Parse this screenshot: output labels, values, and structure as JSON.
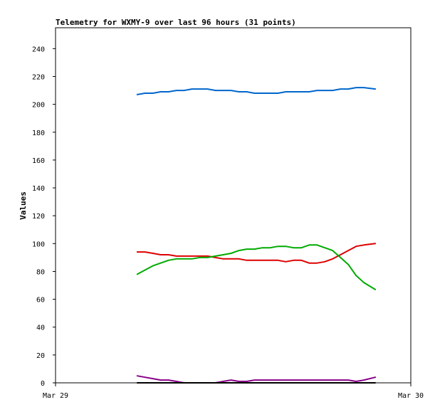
{
  "chart_data": {
    "type": "line",
    "title": "Telemetry for WXMY-9 over last 96 hours (31 points)",
    "xlabel": "",
    "ylabel": "Values",
    "x_ticks": [
      "Mar 29",
      "Mar 30"
    ],
    "ylim": [
      0,
      255
    ],
    "y_ticks": [
      0,
      20,
      40,
      60,
      80,
      100,
      120,
      140,
      160,
      180,
      200,
      220,
      240
    ],
    "grid": false,
    "legend": "none",
    "x": [
      0.23,
      0.252,
      0.274,
      0.296,
      0.318,
      0.34,
      0.362,
      0.384,
      0.406,
      0.428,
      0.45,
      0.472,
      0.494,
      0.516,
      0.538,
      0.56,
      0.582,
      0.604,
      0.626,
      0.648,
      0.67,
      0.692,
      0.714,
      0.736,
      0.758,
      0.78,
      0.802,
      0.824,
      0.846,
      0.868,
      0.9
    ],
    "series": [
      {
        "color": "#0066cc",
        "values": [
          207,
          208,
          208,
          209,
          209,
          210,
          210,
          211,
          211,
          211,
          210,
          210,
          210,
          209,
          209,
          208,
          208,
          208,
          208,
          209,
          209,
          209,
          209,
          210,
          210,
          210,
          211,
          211,
          212,
          212,
          211
        ]
      },
      {
        "color": "#dd0000",
        "values": [
          94,
          94,
          93,
          92,
          92,
          91,
          91,
          91,
          91,
          91,
          90,
          89,
          89,
          89,
          88,
          88,
          88,
          88,
          88,
          87,
          88,
          88,
          86,
          86,
          87,
          89,
          92,
          95,
          98,
          99,
          100
        ]
      },
      {
        "color": "#00aa00",
        "values": [
          78,
          81,
          84,
          86,
          88,
          89,
          89,
          89,
          90,
          90,
          91,
          92,
          93,
          95,
          96,
          96,
          97,
          97,
          98,
          98,
          97,
          97,
          99,
          99,
          97,
          95,
          90,
          85,
          77,
          72,
          67
        ]
      },
      {
        "color": "#880088",
        "values": [
          5,
          4,
          3,
          2,
          2,
          1,
          0,
          0,
          0,
          0,
          0,
          1,
          2,
          1,
          1,
          2,
          2,
          2,
          2,
          2,
          2,
          2,
          2,
          2,
          2,
          2,
          2,
          2,
          1,
          2,
          4
        ]
      },
      {
        "color": "#000000",
        "values": [
          0,
          0,
          0,
          0,
          0,
          0,
          0,
          0,
          0,
          0,
          0,
          0,
          0,
          0,
          0,
          0,
          0,
          0,
          0,
          0,
          0,
          0,
          0,
          0,
          0,
          0,
          0,
          0,
          0,
          0,
          0
        ]
      }
    ]
  }
}
